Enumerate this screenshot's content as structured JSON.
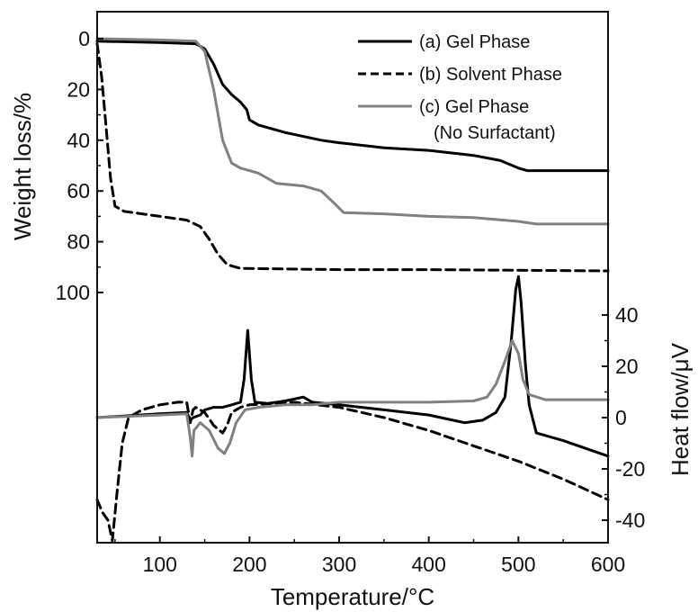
{
  "chart_data": {
    "type": "line",
    "title": "",
    "x": {
      "label": "Temperature/°C",
      "range": [
        30,
        600
      ],
      "ticks": [
        100,
        200,
        300,
        400,
        500,
        600
      ]
    },
    "y_left": {
      "label": "Weight loss/%",
      "range": [
        0,
        100
      ],
      "inverted": true,
      "ticks": [
        0,
        20,
        40,
        60,
        80,
        100
      ]
    },
    "y_right": {
      "label": "Heat flow/μV",
      "range": [
        -50,
        55
      ],
      "ticks": [
        40,
        20,
        0,
        -20,
        -40
      ]
    },
    "grid": false,
    "legend_position": "top-right",
    "legend": [
      {
        "label": "(a) Gel Phase",
        "color": "#000000",
        "dash": "solid"
      },
      {
        "label": "(b) Solvent Phase",
        "color": "#000000",
        "dash": "dashed"
      },
      {
        "label": "(c) Gel Phase",
        "label_line2": "(No Surfactant)",
        "color": "#808080",
        "dash": "solid"
      }
    ],
    "series": [
      {
        "name": "(a) Gel Phase",
        "axis": "left",
        "color": "#000000",
        "dash": "solid",
        "points": [
          [
            30,
            1
          ],
          [
            100,
            1.5
          ],
          [
            140,
            2
          ],
          [
            150,
            4
          ],
          [
            160,
            10
          ],
          [
            170,
            18
          ],
          [
            180,
            22
          ],
          [
            190,
            25
          ],
          [
            197,
            28
          ],
          [
            200,
            32
          ],
          [
            210,
            34
          ],
          [
            240,
            37
          ],
          [
            280,
            40
          ],
          [
            300,
            41
          ],
          [
            350,
            43
          ],
          [
            400,
            44
          ],
          [
            450,
            46
          ],
          [
            480,
            48
          ],
          [
            500,
            51
          ],
          [
            510,
            52
          ],
          [
            600,
            52
          ]
        ]
      },
      {
        "name": "(b) Solvent Phase",
        "axis": "left",
        "color": "#000000",
        "dash": "dashed",
        "points": [
          [
            30,
            2
          ],
          [
            35,
            15
          ],
          [
            40,
            35
          ],
          [
            45,
            55
          ],
          [
            50,
            66
          ],
          [
            60,
            68
          ],
          [
            100,
            70
          ],
          [
            130,
            71.5
          ],
          [
            145,
            74
          ],
          [
            155,
            79
          ],
          [
            165,
            85
          ],
          [
            175,
            89
          ],
          [
            190,
            90.5
          ],
          [
            300,
            91
          ],
          [
            400,
            91
          ],
          [
            600,
            91.5
          ]
        ]
      },
      {
        "name": "(c) Gel Phase",
        "axis": "left",
        "color": "#808080",
        "dash": "solid",
        "points": [
          [
            30,
            0
          ],
          [
            100,
            0.5
          ],
          [
            140,
            1
          ],
          [
            150,
            5
          ],
          [
            160,
            20
          ],
          [
            170,
            40
          ],
          [
            180,
            49
          ],
          [
            190,
            51
          ],
          [
            200,
            52
          ],
          [
            210,
            53
          ],
          [
            230,
            57
          ],
          [
            260,
            58
          ],
          [
            280,
            60
          ],
          [
            295,
            65
          ],
          [
            305,
            68.5
          ],
          [
            350,
            69
          ],
          [
            400,
            70
          ],
          [
            450,
            70.5
          ],
          [
            500,
            72
          ],
          [
            520,
            73
          ],
          [
            600,
            73
          ]
        ]
      },
      {
        "name": "(a) Gel Phase",
        "axis": "right",
        "color": "#000000",
        "dash": "solid",
        "points": [
          [
            30,
            0
          ],
          [
            100,
            1.5
          ],
          [
            130,
            2
          ],
          [
            134,
            -1
          ],
          [
            137,
            0
          ],
          [
            145,
            1
          ],
          [
            150,
            3
          ],
          [
            160,
            4
          ],
          [
            170,
            4
          ],
          [
            180,
            5
          ],
          [
            190,
            6
          ],
          [
            194,
            15
          ],
          [
            198,
            34
          ],
          [
            202,
            15
          ],
          [
            206,
            6
          ],
          [
            220,
            5.5
          ],
          [
            240,
            6.5
          ],
          [
            260,
            8
          ],
          [
            270,
            6
          ],
          [
            300,
            5
          ],
          [
            350,
            3
          ],
          [
            400,
            1
          ],
          [
            440,
            -2
          ],
          [
            460,
            -1
          ],
          [
            475,
            2
          ],
          [
            485,
            8
          ],
          [
            492,
            30
          ],
          [
            497,
            50
          ],
          [
            500,
            55
          ],
          [
            503,
            45
          ],
          [
            508,
            20
          ],
          [
            512,
            5
          ],
          [
            520,
            -6
          ],
          [
            550,
            -9
          ],
          [
            600,
            -15
          ]
        ]
      },
      {
        "name": "(b) Solvent Phase",
        "axis": "right",
        "color": "#000000",
        "dash": "dashed",
        "points": [
          [
            30,
            -32
          ],
          [
            36,
            -37
          ],
          [
            42,
            -40
          ],
          [
            47,
            -48
          ],
          [
            52,
            -30
          ],
          [
            58,
            -10
          ],
          [
            65,
            0
          ],
          [
            80,
            3
          ],
          [
            100,
            5
          ],
          [
            120,
            6
          ],
          [
            130,
            6
          ],
          [
            134,
            -2
          ],
          [
            137,
            3
          ],
          [
            140,
            4
          ],
          [
            150,
            2
          ],
          [
            160,
            -3
          ],
          [
            170,
            -6
          ],
          [
            175,
            -3
          ],
          [
            180,
            2
          ],
          [
            190,
            4
          ],
          [
            200,
            5
          ],
          [
            250,
            6
          ],
          [
            300,
            4
          ],
          [
            350,
            0
          ],
          [
            400,
            -5
          ],
          [
            450,
            -11
          ],
          [
            500,
            -17
          ],
          [
            550,
            -24
          ],
          [
            600,
            -32
          ]
        ]
      },
      {
        "name": "(c) Gel Phase",
        "axis": "right",
        "color": "#808080",
        "dash": "solid",
        "points": [
          [
            30,
            0
          ],
          [
            100,
            1
          ],
          [
            130,
            1.5
          ],
          [
            134,
            -8
          ],
          [
            136,
            -15
          ],
          [
            138,
            -5
          ],
          [
            145,
            -2
          ],
          [
            155,
            -5
          ],
          [
            165,
            -12
          ],
          [
            172,
            -14
          ],
          [
            178,
            -10
          ],
          [
            185,
            -2
          ],
          [
            195,
            3
          ],
          [
            210,
            4
          ],
          [
            240,
            5
          ],
          [
            270,
            5
          ],
          [
            300,
            6
          ],
          [
            350,
            6
          ],
          [
            400,
            6
          ],
          [
            450,
            6.5
          ],
          [
            465,
            8
          ],
          [
            475,
            13
          ],
          [
            485,
            22
          ],
          [
            493,
            30
          ],
          [
            500,
            25
          ],
          [
            505,
            15
          ],
          [
            512,
            9
          ],
          [
            530,
            7
          ],
          [
            600,
            7
          ]
        ]
      }
    ]
  }
}
